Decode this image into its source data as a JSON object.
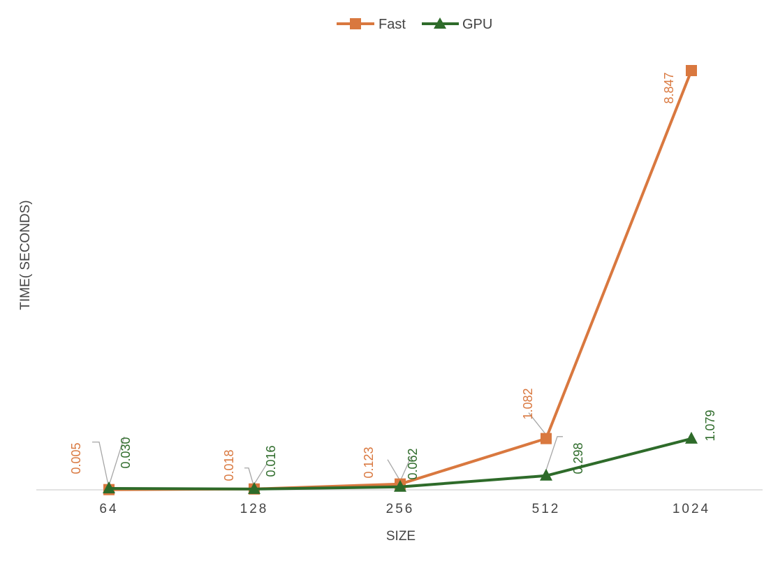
{
  "chart_data": {
    "type": "line",
    "categories": [
      "64",
      "128",
      "256",
      "512",
      "1024"
    ],
    "xlabel": "SIZE",
    "ylabel": "TIME( SECONDS)",
    "ylim": [
      0,
      9.2
    ],
    "grid": false,
    "legend_position": "top",
    "series": [
      {
        "name": "Fast",
        "color": "#D9783F",
        "marker": "square",
        "values": [
          0.005,
          0.018,
          0.123,
          1.082,
          8.847
        ],
        "labels": [
          "0.005",
          "0.018",
          "0.123",
          "1.082",
          "8.847"
        ]
      },
      {
        "name": "GPU",
        "color": "#2E6B2A",
        "marker": "triangle",
        "values": [
          0.03,
          0.016,
          0.062,
          0.298,
          1.079
        ],
        "labels": [
          "0.030",
          "0.016",
          "0.062",
          "0.298",
          "1.079"
        ]
      }
    ]
  }
}
